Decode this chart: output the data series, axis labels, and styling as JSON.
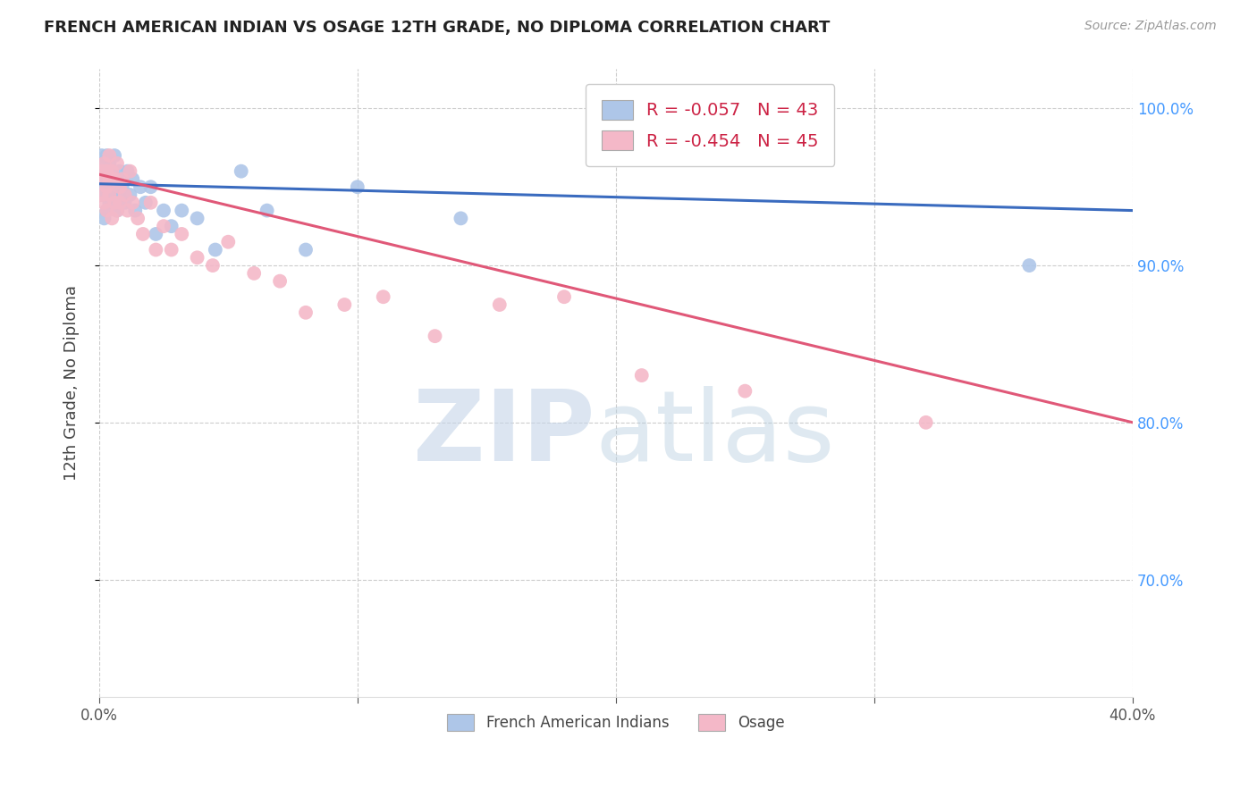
{
  "title": "FRENCH AMERICAN INDIAN VS OSAGE 12TH GRADE, NO DIPLOMA CORRELATION CHART",
  "source": "Source: ZipAtlas.com",
  "ylabel": "12th Grade, No Diploma",
  "legend_blue_r": "R = -0.057",
  "legend_blue_n": "N = 43",
  "legend_pink_r": "R = -0.454",
  "legend_pink_n": "N = 45",
  "blue_color": "#aec6e8",
  "pink_color": "#f4b8c8",
  "blue_line_color": "#3a6bbf",
  "pink_line_color": "#e05878",
  "blue_scatter_x": [
    0.001,
    0.001,
    0.001,
    0.002,
    0.002,
    0.002,
    0.002,
    0.003,
    0.003,
    0.003,
    0.003,
    0.004,
    0.004,
    0.004,
    0.005,
    0.005,
    0.006,
    0.006,
    0.007,
    0.007,
    0.008,
    0.008,
    0.009,
    0.01,
    0.011,
    0.012,
    0.013,
    0.014,
    0.016,
    0.018,
    0.02,
    0.022,
    0.025,
    0.028,
    0.032,
    0.038,
    0.045,
    0.055,
    0.065,
    0.08,
    0.1,
    0.14,
    0.36
  ],
  "blue_scatter_y": [
    0.955,
    0.97,
    0.945,
    0.965,
    0.95,
    0.93,
    0.96,
    0.97,
    0.955,
    0.945,
    0.935,
    0.965,
    0.95,
    0.94,
    0.96,
    0.945,
    0.97,
    0.94,
    0.955,
    0.935,
    0.96,
    0.945,
    0.95,
    0.94,
    0.96,
    0.945,
    0.955,
    0.935,
    0.95,
    0.94,
    0.95,
    0.92,
    0.935,
    0.925,
    0.935,
    0.93,
    0.91,
    0.96,
    0.935,
    0.91,
    0.95,
    0.93,
    0.9
  ],
  "pink_scatter_x": [
    0.001,
    0.001,
    0.002,
    0.002,
    0.002,
    0.003,
    0.003,
    0.003,
    0.004,
    0.004,
    0.004,
    0.005,
    0.005,
    0.006,
    0.006,
    0.007,
    0.007,
    0.008,
    0.008,
    0.009,
    0.01,
    0.011,
    0.012,
    0.013,
    0.015,
    0.017,
    0.02,
    0.022,
    0.025,
    0.028,
    0.032,
    0.038,
    0.044,
    0.05,
    0.06,
    0.07,
    0.08,
    0.095,
    0.11,
    0.13,
    0.155,
    0.18,
    0.21,
    0.25,
    0.32
  ],
  "pink_scatter_y": [
    0.96,
    0.945,
    0.955,
    0.965,
    0.94,
    0.96,
    0.95,
    0.935,
    0.97,
    0.945,
    0.955,
    0.96,
    0.93,
    0.955,
    0.94,
    0.965,
    0.935,
    0.95,
    0.94,
    0.955,
    0.945,
    0.935,
    0.96,
    0.94,
    0.93,
    0.92,
    0.94,
    0.91,
    0.925,
    0.91,
    0.92,
    0.905,
    0.9,
    0.915,
    0.895,
    0.89,
    0.87,
    0.875,
    0.88,
    0.855,
    0.875,
    0.88,
    0.83,
    0.82,
    0.8
  ],
  "xlim": [
    0.0,
    0.4
  ],
  "ylim": [
    0.625,
    1.025
  ],
  "blue_line_x": [
    0.0,
    0.4
  ],
  "blue_line_y": [
    0.952,
    0.935
  ],
  "pink_line_x": [
    0.0,
    0.4
  ],
  "pink_line_y": [
    0.958,
    0.8
  ],
  "grid_color": "#cccccc",
  "ytick_vals": [
    0.7,
    0.8,
    0.9,
    1.0
  ],
  "ytick_labels": [
    "70.0%",
    "80.0%",
    "90.0%",
    "100.0%"
  ],
  "right_tick_color": "#4499ff",
  "xtick_vals": [
    0.0,
    0.1,
    0.2,
    0.3,
    0.4
  ],
  "xtick_labels_show": [
    "0.0%",
    "",
    "",
    "",
    "40.0%"
  ]
}
